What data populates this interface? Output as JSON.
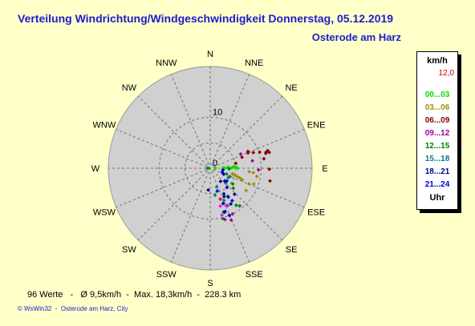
{
  "header": {
    "title": "Verteilung Windrichtung/Windgeschwindigkeit  Donnerstag, 05.12.2019",
    "location": "Osterode am Harz"
  },
  "stats": {
    "line": "96 Werte   -   Ø 9,5km/h  -  Max. 18,3km/h  -  228.3 km"
  },
  "footer": {
    "line": "© WsWin32  -  Osterode am Harz, City"
  },
  "legend": {
    "unit": "km/h",
    "max_value": "12,0",
    "time_label": "Uhr",
    "ranges": [
      {
        "label": "00...03",
        "color": "#00e000"
      },
      {
        "label": "03...06",
        "color": "#a09000"
      },
      {
        "label": "06...09",
        "color": "#8b0000"
      },
      {
        "label": "09...12",
        "color": "#a000a0"
      },
      {
        "label": "12...15",
        "color": "#008000"
      },
      {
        "label": "15...18",
        "color": "#008080"
      },
      {
        "label": "18...21",
        "color": "#000090"
      },
      {
        "label": "21...24",
        "color": "#0000e0"
      }
    ]
  },
  "chart_data": {
    "type": "scatter",
    "subtype": "polar-wind-rose",
    "radial_max": 20,
    "radial_tick_labels": [
      "0",
      "10"
    ],
    "directions": [
      "N",
      "NNE",
      "NE",
      "ENE",
      "E",
      "ESE",
      "SE",
      "SSE",
      "S",
      "SSW",
      "SW",
      "WSW",
      "W",
      "WNW",
      "NW",
      "NNW"
    ],
    "grid": true,
    "legend_position": "right",
    "series": [
      {
        "name": "00...03",
        "color": "#00e000",
        "points": [
          {
            "bearing": 90,
            "speed": 1.0
          },
          {
            "bearing": 88,
            "speed": 2.6
          },
          {
            "bearing": 90,
            "speed": 2.9
          },
          {
            "bearing": 87,
            "speed": 3.5
          },
          {
            "bearing": 89,
            "speed": 4.2
          },
          {
            "bearing": 86,
            "speed": 4.6
          },
          {
            "bearing": 88,
            "speed": 5.1
          },
          {
            "bearing": 90,
            "speed": 5.4
          },
          {
            "bearing": 270,
            "speed": 0.3
          }
        ]
      },
      {
        "name": "03...06",
        "color": "#a09000",
        "points": [
          {
            "bearing": 104,
            "speed": 4.5
          },
          {
            "bearing": 106,
            "speed": 5.0
          },
          {
            "bearing": 107,
            "speed": 5.5
          },
          {
            "bearing": 108,
            "speed": 6.0
          },
          {
            "bearing": 109,
            "speed": 6.4
          },
          {
            "bearing": 110,
            "speed": 6.7
          },
          {
            "bearing": 95,
            "speed": 7.7
          },
          {
            "bearing": 112,
            "speed": 8.2
          },
          {
            "bearing": 96,
            "speed": 8.5
          },
          {
            "bearing": 122,
            "speed": 8.3
          },
          {
            "bearing": 100,
            "speed": 9.3
          },
          {
            "bearing": 110,
            "speed": 9.1
          }
        ]
      },
      {
        "name": "06...09",
        "color": "#8b0000",
        "points": [
          {
            "bearing": 79,
            "speed": 5.1
          },
          {
            "bearing": 71,
            "speed": 6.6
          },
          {
            "bearing": 68,
            "speed": 8.0
          },
          {
            "bearing": 66,
            "speed": 8.1
          },
          {
            "bearing": 70,
            "speed": 9.0
          },
          {
            "bearing": 72,
            "speed": 10.2
          },
          {
            "bearing": 80,
            "speed": 10.7
          },
          {
            "bearing": 75,
            "speed": 11.3
          },
          {
            "bearing": 74,
            "speed": 11.4
          },
          {
            "bearing": 91,
            "speed": 11.6
          },
          {
            "bearing": 73,
            "speed": 11.8
          },
          {
            "bearing": 75,
            "speed": 12.0
          },
          {
            "bearing": 102,
            "speed": 12.0
          }
        ]
      },
      {
        "name": "09...12",
        "color": "#a000a0",
        "points": [
          {
            "bearing": 65,
            "speed": 6.6
          },
          {
            "bearing": 80,
            "speed": 8.4
          },
          {
            "bearing": 92,
            "speed": 9.5
          },
          {
            "bearing": 154,
            "speed": 10.0
          },
          {
            "bearing": 158,
            "speed": 11.0
          },
          {
            "bearing": 164,
            "speed": 10.5
          }
        ]
      },
      {
        "name": "12...15",
        "color": "#008000",
        "points": [
          {
            "bearing": 92,
            "speed": 3.7
          },
          {
            "bearing": 125,
            "speed": 5.4
          },
          {
            "bearing": 131,
            "speed": 6.0
          },
          {
            "bearing": 148,
            "speed": 6.5
          },
          {
            "bearing": 145,
            "speed": 8.9
          },
          {
            "bearing": 163,
            "speed": 9.0
          },
          {
            "bearing": 142,
            "speed": 9.4
          },
          {
            "bearing": 166,
            "speed": 10.2
          },
          {
            "bearing": 270,
            "speed": 0.5
          }
        ]
      },
      {
        "name": "15...18",
        "color": "#008080",
        "points": [
          {
            "bearing": 109,
            "speed": 3.4
          },
          {
            "bearing": 113,
            "speed": 4.2
          },
          {
            "bearing": 118,
            "speed": 4.0
          },
          {
            "bearing": 134,
            "speed": 4.2
          },
          {
            "bearing": 161,
            "speed": 3.9
          },
          {
            "bearing": 170,
            "speed": 5.4
          },
          {
            "bearing": 157,
            "speed": 6.9
          },
          {
            "bearing": 155,
            "speed": 8.1
          }
        ]
      },
      {
        "name": "18...21",
        "color": "#000090",
        "points": [
          {
            "bearing": 98,
            "speed": 2.5
          },
          {
            "bearing": 114,
            "speed": 2.9
          },
          {
            "bearing": 142,
            "speed": 3.3
          },
          {
            "bearing": 128,
            "speed": 4.1
          },
          {
            "bearing": 152,
            "speed": 5.7
          },
          {
            "bearing": 185,
            "speed": 4.3
          },
          {
            "bearing": 154,
            "speed": 6.2
          },
          {
            "bearing": 137,
            "speed": 7.0
          },
          {
            "bearing": 160,
            "speed": 7.4
          },
          {
            "bearing": 150,
            "speed": 8.1
          },
          {
            "bearing": 162,
            "speed": 9.1
          }
        ]
      },
      {
        "name": "21...24",
        "color": "#0000e0",
        "points": [
          {
            "bearing": 109,
            "speed": 2.5
          },
          {
            "bearing": 131,
            "speed": 3.8
          },
          {
            "bearing": 139,
            "speed": 5.0
          },
          {
            "bearing": 163,
            "speed": 4.7
          },
          {
            "bearing": 148,
            "speed": 6.7
          },
          {
            "bearing": 146,
            "speed": 7.7
          },
          {
            "bearing": 161,
            "speed": 9.0
          },
          {
            "bearing": 158,
            "speed": 10.0
          }
        ]
      },
      {
        "name": "",
        "color": "#ff00ff",
        "points": [
          {
            "bearing": 157,
            "speed": 8.0
          },
          {
            "bearing": 165,
            "speed": 7.7
          },
          {
            "bearing": 166,
            "speed": 9.5
          }
        ]
      },
      {
        "name": "",
        "color": "#ff0000",
        "points": [
          {
            "bearing": 162,
            "speed": 6.4
          }
        ]
      }
    ]
  }
}
